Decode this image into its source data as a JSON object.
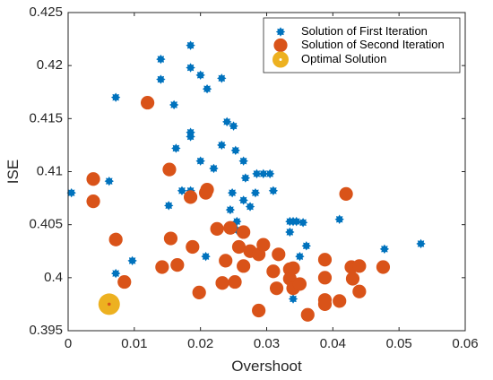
{
  "chart_data": {
    "type": "scatter",
    "xlabel": "Overshoot",
    "ylabel": "ISE",
    "xlim": [
      0,
      0.06
    ],
    "ylim": [
      0.395,
      0.425
    ],
    "x_ticks": [
      "0",
      "0.01",
      "0.02",
      "0.03",
      "0.04",
      "0.05",
      "0.06"
    ],
    "y_ticks": [
      "0.395",
      "0.4",
      "0.405",
      "0.41",
      "0.415",
      "0.42",
      "0.425"
    ],
    "legend_position": "top-right",
    "grid": false,
    "series": [
      {
        "name": "Solution of First Iteration",
        "marker": "star",
        "color": "#0072BD",
        "points": [
          [
            0.0005,
            0.408
          ],
          [
            0.0062,
            0.4091
          ],
          [
            0.0072,
            0.417
          ],
          [
            0.0072,
            0.4004
          ],
          [
            0.0097,
            0.4016
          ],
          [
            0.014,
            0.4206
          ],
          [
            0.014,
            0.4187
          ],
          [
            0.0152,
            0.4068
          ],
          [
            0.016,
            0.4163
          ],
          [
            0.0163,
            0.4122
          ],
          [
            0.0172,
            0.4082
          ],
          [
            0.0185,
            0.4219
          ],
          [
            0.0185,
            0.4198
          ],
          [
            0.0185,
            0.4137
          ],
          [
            0.0185,
            0.4133
          ],
          [
            0.0185,
            0.4082
          ],
          [
            0.02,
            0.4191
          ],
          [
            0.02,
            0.411
          ],
          [
            0.0208,
            0.402
          ],
          [
            0.021,
            0.4178
          ],
          [
            0.022,
            0.4103
          ],
          [
            0.0232,
            0.4188
          ],
          [
            0.0232,
            0.4125
          ],
          [
            0.024,
            0.4147
          ],
          [
            0.0245,
            0.4064
          ],
          [
            0.0248,
            0.408
          ],
          [
            0.025,
            0.4143
          ],
          [
            0.0253,
            0.412
          ],
          [
            0.0255,
            0.4045
          ],
          [
            0.0255,
            0.4053
          ],
          [
            0.0265,
            0.411
          ],
          [
            0.0265,
            0.4073
          ],
          [
            0.0268,
            0.4094
          ],
          [
            0.0275,
            0.4067
          ],
          [
            0.0283,
            0.408
          ],
          [
            0.0285,
            0.4098
          ],
          [
            0.0295,
            0.4098
          ],
          [
            0.0305,
            0.4098
          ],
          [
            0.031,
            0.4082
          ],
          [
            0.0335,
            0.4053
          ],
          [
            0.0335,
            0.4043
          ],
          [
            0.034,
            0.4053
          ],
          [
            0.034,
            0.398
          ],
          [
            0.0345,
            0.4053
          ],
          [
            0.035,
            0.402
          ],
          [
            0.0355,
            0.4052
          ],
          [
            0.036,
            0.403
          ],
          [
            0.041,
            0.4055
          ],
          [
            0.0478,
            0.4027
          ],
          [
            0.0533,
            0.4032
          ]
        ]
      },
      {
        "name": "Solution of Second Iteration",
        "marker": "circle",
        "color": "#D95319",
        "points": [
          [
            0.0038,
            0.4093
          ],
          [
            0.0038,
            0.4072
          ],
          [
            0.0072,
            0.4036
          ],
          [
            0.0085,
            0.3996
          ],
          [
            0.012,
            0.4165
          ],
          [
            0.0142,
            0.401
          ],
          [
            0.0153,
            0.4102
          ],
          [
            0.0155,
            0.4037
          ],
          [
            0.0165,
            0.4012
          ],
          [
            0.0185,
            0.4076
          ],
          [
            0.0188,
            0.4029
          ],
          [
            0.0198,
            0.3986
          ],
          [
            0.0208,
            0.408
          ],
          [
            0.021,
            0.4083
          ],
          [
            0.0225,
            0.4046
          ],
          [
            0.0233,
            0.3995
          ],
          [
            0.0238,
            0.4016
          ],
          [
            0.0245,
            0.4047
          ],
          [
            0.0252,
            0.3996
          ],
          [
            0.0258,
            0.4029
          ],
          [
            0.0265,
            0.4011
          ],
          [
            0.0265,
            0.4043
          ],
          [
            0.0275,
            0.4025
          ],
          [
            0.0288,
            0.3969
          ],
          [
            0.0288,
            0.4022
          ],
          [
            0.0295,
            0.4031
          ],
          [
            0.031,
            0.4006
          ],
          [
            0.0315,
            0.399
          ],
          [
            0.0318,
            0.4022
          ],
          [
            0.0335,
            0.4008
          ],
          [
            0.0335,
            0.3999
          ],
          [
            0.034,
            0.399
          ],
          [
            0.034,
            0.4009
          ],
          [
            0.035,
            0.3994
          ],
          [
            0.0362,
            0.3965
          ],
          [
            0.0388,
            0.4017
          ],
          [
            0.0388,
            0.4
          ],
          [
            0.0388,
            0.3979
          ],
          [
            0.0388,
            0.3975
          ],
          [
            0.041,
            0.3978
          ],
          [
            0.042,
            0.4079
          ],
          [
            0.0428,
            0.401
          ],
          [
            0.043,
            0.3999
          ],
          [
            0.044,
            0.4011
          ],
          [
            0.044,
            0.3987
          ],
          [
            0.0476,
            0.401
          ]
        ]
      },
      {
        "name": "Optimal Solution",
        "marker": "big-circle",
        "color": "#EDB120",
        "points": [
          [
            0.0062,
            0.3975
          ]
        ]
      }
    ]
  }
}
